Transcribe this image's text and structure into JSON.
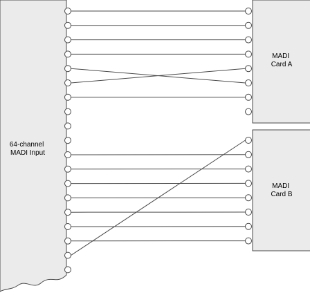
{
  "input": {
    "line1": "64-channel",
    "line2": "MADI Input"
  },
  "card_a": {
    "line1": "MADI",
    "line2": "Card A"
  },
  "card_b": {
    "line1": "MADI",
    "line2": "Card B"
  },
  "colors": {
    "stroke": "#4a4a4a",
    "block_fill": "#ebebeb",
    "background": "#ffffff"
  },
  "input_port_count": 19,
  "card_a_port_count": 8,
  "card_b_port_count": 8,
  "connections": [
    {
      "from": "input-1",
      "to": "card-a-1"
    },
    {
      "from": "input-2",
      "to": "card-a-2"
    },
    {
      "from": "input-3",
      "to": "card-a-3"
    },
    {
      "from": "input-4",
      "to": "card-a-4"
    },
    {
      "from": "input-5",
      "to": "card-a-6"
    },
    {
      "from": "input-6",
      "to": "card-a-5"
    },
    {
      "from": "input-7",
      "to": "card-a-7"
    },
    {
      "from": "input-11",
      "to": "card-b-2"
    },
    {
      "from": "input-12",
      "to": "card-b-3"
    },
    {
      "from": "input-13",
      "to": "card-b-4"
    },
    {
      "from": "input-14",
      "to": "card-b-5"
    },
    {
      "from": "input-15",
      "to": "card-b-6"
    },
    {
      "from": "input-16",
      "to": "card-b-7"
    },
    {
      "from": "input-17",
      "to": "card-b-8"
    },
    {
      "from": "input-18",
      "to": "card-b-1"
    }
  ]
}
